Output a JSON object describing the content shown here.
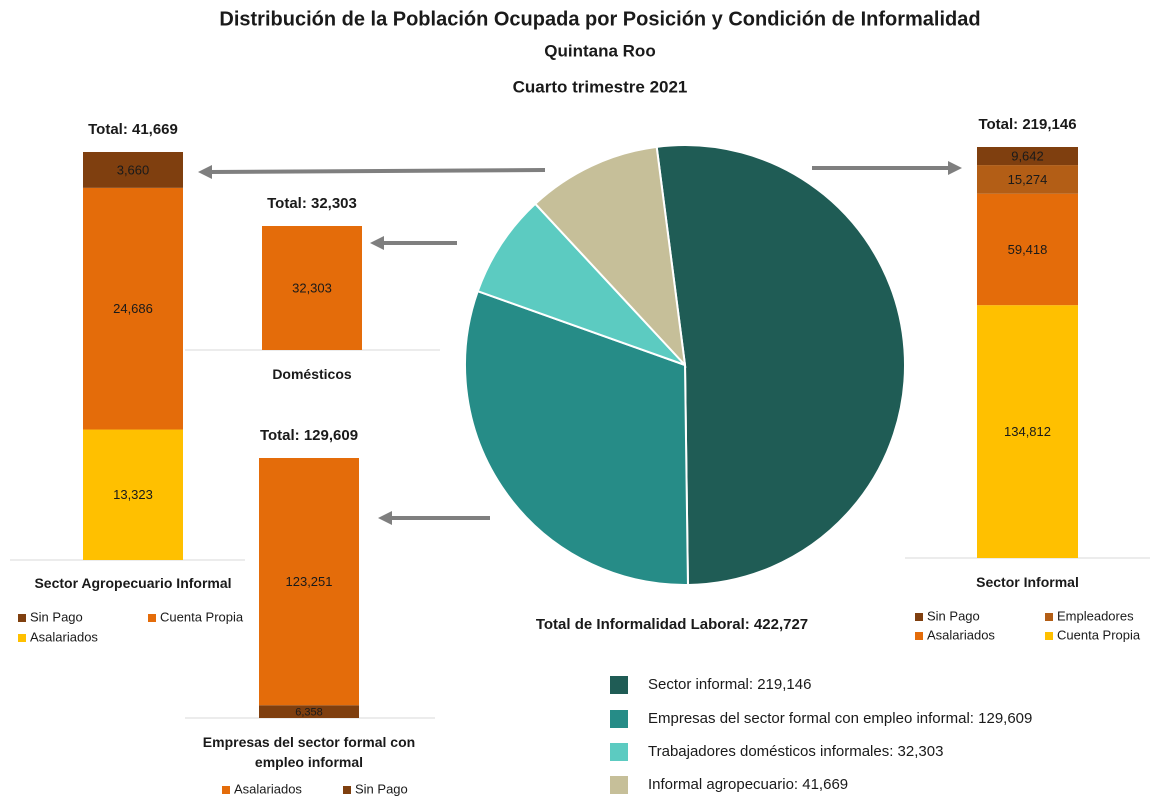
{
  "title": "Distribución de la Población Ocupada por Posición y Condición de Informalidad",
  "subtitle": "Quintana Roo",
  "period": "Cuarto trimestre 2021",
  "chart_data": [
    {
      "type": "pie",
      "total_label": "Total de Informalidad Laboral: 422,727",
      "categories": [
        "Sector informal: 219,146",
        "Empresas del sector formal con empleo informal: 129,609",
        "Trabajadores domésticos informales: 32,303",
        "Informal agropecuario: 41,669"
      ],
      "values": [
        219146,
        129609,
        32303,
        41669
      ],
      "colors": [
        "#1f5c55",
        "#268c87",
        "#5ccbc1",
        "#c6bf99"
      ]
    },
    {
      "type": "stacked_bar",
      "title": "Sector Agropecuario Informal",
      "total_label": "Total: 41,669",
      "ylim": [
        0,
        41669
      ],
      "series": [
        {
          "name": "Asalariados",
          "color": "#ffc000",
          "label_color": "#333333",
          "values": [
            13323
          ],
          "value_labels": [
            "13,323"
          ]
        },
        {
          "name": "Cuenta Propia",
          "color": "#e46c0a",
          "label_color": "#333333",
          "values": [
            24686
          ],
          "value_labels": [
            "24,686"
          ]
        },
        {
          "name": "Sin Pago",
          "color": "#7f3f0f",
          "label_color": "#ffffff",
          "values": [
            3660
          ],
          "value_labels": [
            "3,660"
          ]
        }
      ]
    },
    {
      "type": "stacked_bar",
      "title": "Domésticos",
      "total_label": "Total: 32,303",
      "ylim": [
        0,
        32303
      ],
      "series": [
        {
          "color": "#e46c0a",
          "label_color": "#333333",
          "values": [
            32303
          ],
          "value_labels": [
            "32,303"
          ]
        }
      ]
    },
    {
      "type": "stacked_bar",
      "title": "Empresas del sector formal con empleo informal",
      "total_label": "Total: 129,609",
      "ylim": [
        0,
        129609
      ],
      "series": [
        {
          "name": "Sin Pago",
          "color": "#7f3f0f",
          "label_color": "#ffffff",
          "values": [
            6358
          ],
          "value_labels": [
            "6,358"
          ]
        },
        {
          "name": "Asalariados",
          "color": "#e46c0a",
          "label_color": "#333333",
          "values": [
            123251
          ],
          "value_labels": [
            "123,251"
          ]
        }
      ]
    },
    {
      "type": "stacked_bar",
      "title": "Sector Informal",
      "total_label": "Total: 219,146",
      "ylim": [
        0,
        219146
      ],
      "series": [
        {
          "name": "Cuenta Propia",
          "color": "#ffc000",
          "label_color": "#333333",
          "values": [
            134812
          ],
          "value_labels": [
            "134,812"
          ]
        },
        {
          "name": "Asalariados",
          "color": "#e46c0a",
          "label_color": "#333333",
          "values": [
            59418
          ],
          "value_labels": [
            "59,418"
          ]
        },
        {
          "name": "Empleadores",
          "color": "#b35e16",
          "label_color": "#ffffff",
          "values": [
            15274
          ],
          "value_labels": [
            "15,274"
          ]
        },
        {
          "name": "Sin Pago",
          "color": "#7f3f0f",
          "label_color": "#ffffff",
          "values": [
            9642
          ],
          "value_labels": [
            "9,642"
          ]
        }
      ]
    }
  ]
}
